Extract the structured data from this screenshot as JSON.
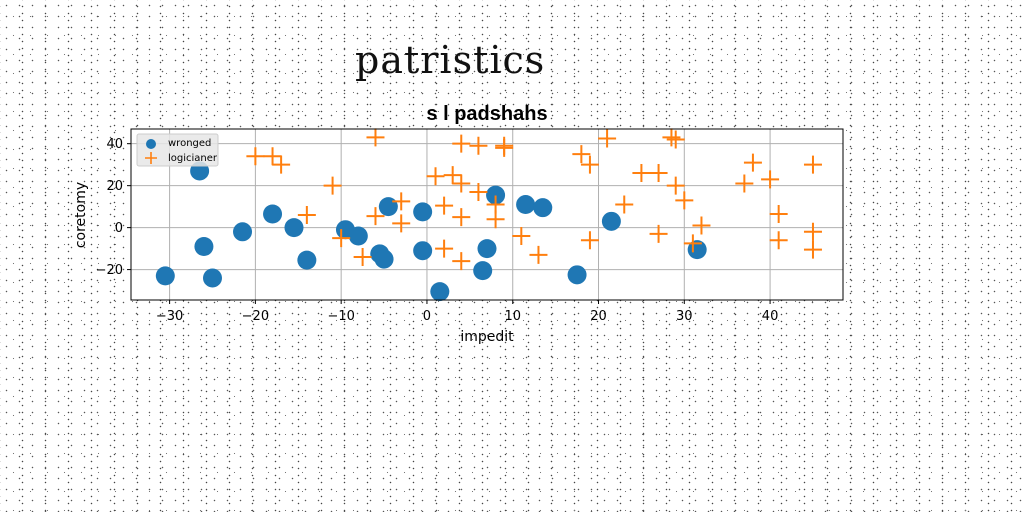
{
  "page_title": "patristics",
  "chart_data": {
    "type": "scatter",
    "title": "s l padshahs",
    "xlabel": "impedit",
    "ylabel": "coretomy",
    "xlim": [
      -34.5,
      48.5
    ],
    "ylim": [
      -34.5,
      47
    ],
    "xticks": [
      -30,
      -20,
      -10,
      0,
      10,
      20,
      30,
      40
    ],
    "yticks": [
      -20,
      0,
      20,
      40
    ],
    "grid": true,
    "legend_position": "top-left",
    "series": [
      {
        "name": "wronged",
        "marker": "circle",
        "color": "#1f77b4",
        "points": [
          [
            -30.5,
            -23
          ],
          [
            -26.5,
            27
          ],
          [
            -26,
            -9
          ],
          [
            -25,
            -24
          ],
          [
            -21.5,
            -2
          ],
          [
            -18,
            6.5
          ],
          [
            -15.5,
            0
          ],
          [
            -14,
            -15.5
          ],
          [
            -9.5,
            -1
          ],
          [
            -8,
            -4
          ],
          [
            -5.5,
            -12.5
          ],
          [
            -5,
            -15
          ],
          [
            -4.5,
            10
          ],
          [
            -0.5,
            7.5
          ],
          [
            -0.5,
            -11
          ],
          [
            1.5,
            -30.5
          ],
          [
            6.5,
            -20.5
          ],
          [
            7,
            -10
          ],
          [
            8,
            15.5
          ],
          [
            11.5,
            11
          ],
          [
            13.5,
            9.5
          ],
          [
            17.5,
            -22.5
          ],
          [
            21.5,
            3
          ],
          [
            31.5,
            -10.5
          ]
        ]
      },
      {
        "name": "logicianer",
        "marker": "plus",
        "color": "#ff7f0e",
        "points": [
          [
            -20,
            34
          ],
          [
            -18,
            34
          ],
          [
            -17,
            30
          ],
          [
            -14,
            6
          ],
          [
            -11,
            20
          ],
          [
            -10,
            -5
          ],
          [
            -7.5,
            -14
          ],
          [
            -6,
            5.5
          ],
          [
            -6,
            43
          ],
          [
            -3,
            12.5
          ],
          [
            -3,
            2
          ],
          [
            1,
            24.5
          ],
          [
            2,
            10.5
          ],
          [
            2,
            -10
          ],
          [
            3,
            25
          ],
          [
            4,
            21
          ],
          [
            4,
            40
          ],
          [
            4,
            5
          ],
          [
            4,
            -16
          ],
          [
            6,
            17
          ],
          [
            6,
            39
          ],
          [
            8,
            11
          ],
          [
            8,
            4
          ],
          [
            9,
            38
          ],
          [
            9,
            39
          ],
          [
            11,
            -4
          ],
          [
            13,
            -13
          ],
          [
            18,
            35
          ],
          [
            19,
            30
          ],
          [
            19,
            -6
          ],
          [
            21,
            42.5
          ],
          [
            23,
            11
          ],
          [
            25,
            26
          ],
          [
            27,
            26
          ],
          [
            27,
            -3
          ],
          [
            28.5,
            43
          ],
          [
            29,
            42
          ],
          [
            29,
            20
          ],
          [
            30,
            13
          ],
          [
            31,
            -7.5
          ],
          [
            32,
            1
          ],
          [
            37,
            21
          ],
          [
            38,
            31
          ],
          [
            40,
            23
          ],
          [
            41,
            6.5
          ],
          [
            41,
            -6
          ],
          [
            45,
            30
          ],
          [
            45,
            -2
          ],
          [
            45,
            -10.5
          ]
        ]
      }
    ]
  }
}
